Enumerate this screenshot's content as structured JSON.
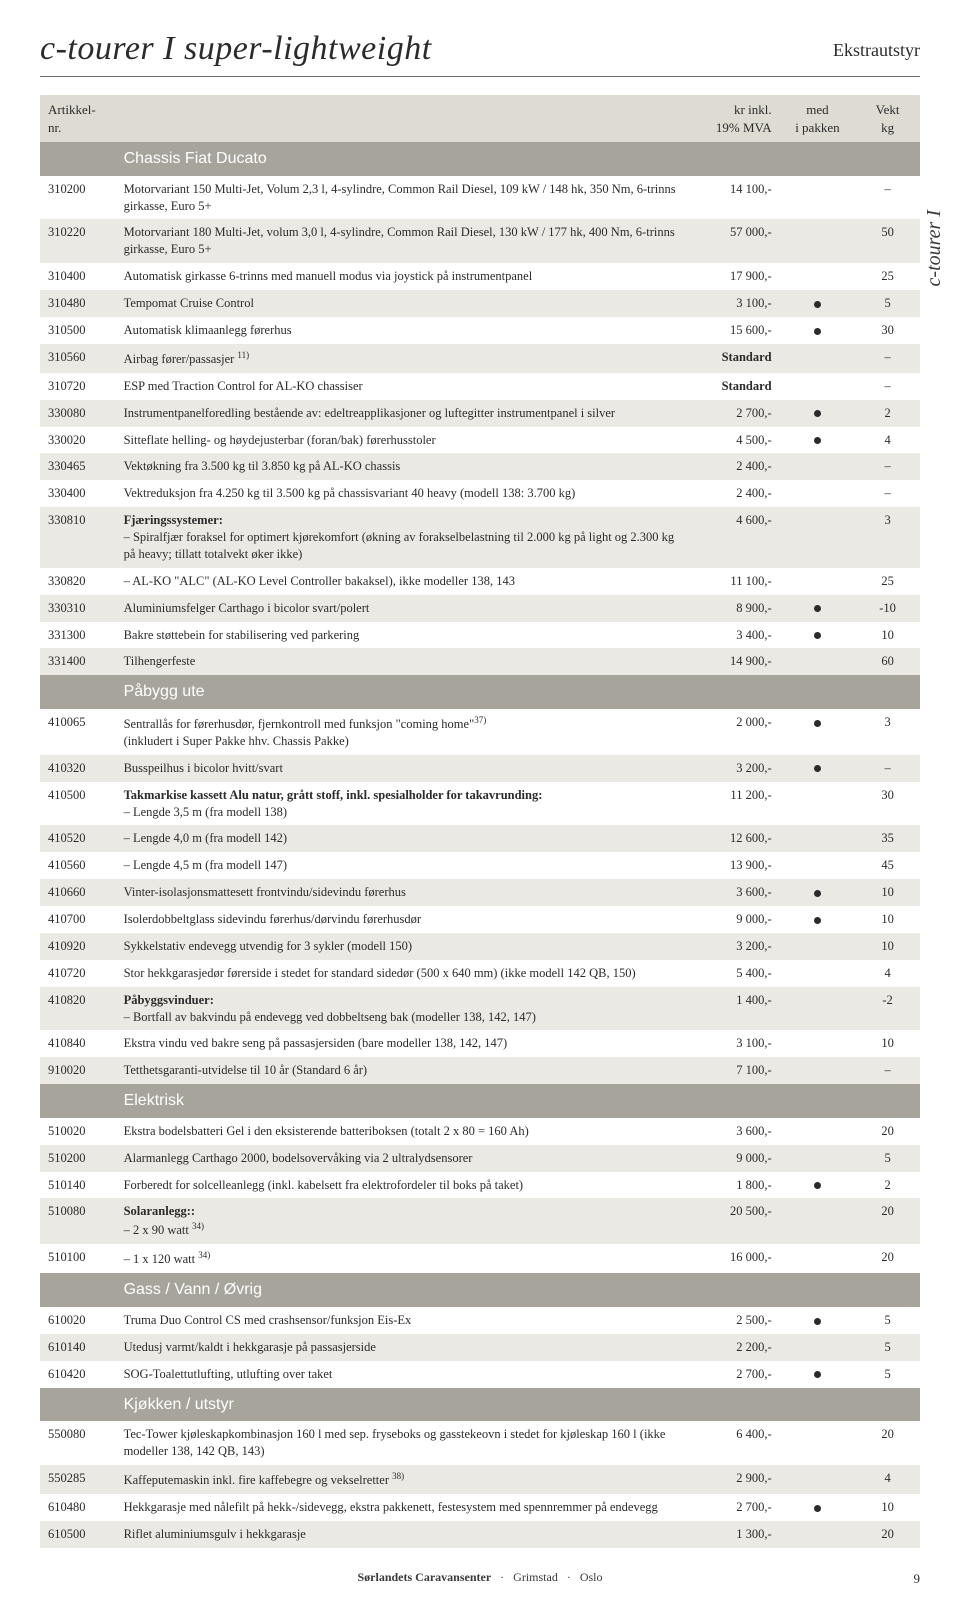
{
  "title": "c-tourer I super-lightweight",
  "subtitle_right": "Ekstrautstyr",
  "side_tab": "c-tourer I",
  "columns": {
    "art": "Artikkel-nr.",
    "price": "kr inkl.\n19% MVA",
    "pkg": "med\ni pakken",
    "wt": "Vekt\nkg"
  },
  "footer": {
    "left": "Sørlandets Caravansenter",
    "mid": "·",
    "c1": "Grimstad",
    "c2": "Oslo"
  },
  "page_num": "9",
  "sections": [
    {
      "title": "Chassis Fiat Ducato",
      "rows": [
        {
          "art": "310200",
          "desc": "Motorvariant 150 Multi-Jet, Volum 2,3 l, 4-sylindre, Common Rail Diesel, 109 kW / 148 hk, 350 Nm, 6-trinns girkasse, Euro 5+",
          "price": "14 100,-",
          "pkg": "",
          "wt": "–"
        },
        {
          "art": "310220",
          "desc": "Motorvariant 180 Multi-Jet, volum 3,0 l, 4-sylindre, Common Rail Diesel, 130 kW / 177 hk, 400 Nm, 6-trinns girkasse, Euro 5+",
          "price": "57 000,-",
          "pkg": "",
          "wt": "50"
        },
        {
          "art": "310400",
          "desc": "Automatisk girkasse 6-trinns med manuell modus via joystick på instrumentpanel",
          "price": "17 900,-",
          "pkg": "",
          "wt": "25"
        },
        {
          "art": "310480",
          "desc": "Tempomat Cruise Control",
          "price": "3 100,-",
          "pkg": "●",
          "wt": "5"
        },
        {
          "art": "310500",
          "desc": "Automatisk klimaanlegg førerhus",
          "price": "15 600,-",
          "pkg": "●",
          "wt": "30"
        },
        {
          "art": "310560",
          "desc": "Airbag fører/passasjer ",
          "sup": "11)",
          "price": "Standard",
          "price_bold": true,
          "pkg": "",
          "wt": "–"
        },
        {
          "art": "310720",
          "desc": "ESP med Traction Control for AL-KO chassiser",
          "price": "Standard",
          "price_bold": true,
          "pkg": "",
          "wt": "–"
        },
        {
          "art": "330080",
          "desc": "Instrumentpanelforedling bestående av: edeltreapplikasjoner og luftegitter instrumentpanel i silver",
          "price": "2 700,-",
          "pkg": "●",
          "wt": "2"
        },
        {
          "art": "330020",
          "desc": "Sitteflate helling- og høydejusterbar (foran/bak) førerhusstoler",
          "price": "4 500,-",
          "pkg": "●",
          "wt": "4"
        },
        {
          "art": "330465",
          "desc": "Vektøkning fra 3.500 kg til 3.850 kg på AL-KO chassis",
          "price": "2 400,-",
          "pkg": "",
          "wt": "–"
        },
        {
          "art": "330400",
          "desc": "Vektreduksjon fra 4.250 kg til 3.500 kg på chassisvariant 40 heavy (modell 138: 3.700 kg)",
          "price": "2 400,-",
          "pkg": "",
          "wt": "–"
        },
        {
          "art": "330810",
          "desc_html": "<b>Fjæringssystemer:</b><br>– Spiralfjær foraksel for optimert kjørekomfort (økning av forakselbelastning til 2.000 kg på light og 2.300 kg på heavy; tillatt totalvekt øker ikke)",
          "price": "4 600,-",
          "pkg": "",
          "wt": "3"
        },
        {
          "art": "330820",
          "desc": "– AL-KO \"ALC\" (AL-KO Level Controller bakaksel), ikke modeller 138, 143",
          "price": "11 100,-",
          "pkg": "",
          "wt": "25"
        },
        {
          "art": "330310",
          "desc": "Aluminiumsfelger Carthago i bicolor svart/polert",
          "price": "8 900,-",
          "pkg": "●",
          "wt": "-10"
        },
        {
          "art": "331300",
          "desc": "Bakre støttebein for stabilisering ved parkering",
          "price": "3 400,-",
          "pkg": "●",
          "wt": "10"
        },
        {
          "art": "331400",
          "desc": "Tilhengerfeste",
          "price": "14 900,-",
          "pkg": "",
          "wt": "60"
        }
      ]
    },
    {
      "title": "Påbygg ute",
      "rows": [
        {
          "art": "410065",
          "desc_html": "Sentrallås for førerhusdør, fjernkontroll med funksjon \"coming home\"<sup>37)</sup><br>(inkludert i Super Pakke hhv. Chassis Pakke)",
          "price": "2 000,-",
          "pkg": "●",
          "wt": "3"
        },
        {
          "art": "410320",
          "desc": "Busspeilhus i bicolor hvitt/svart",
          "price": "3 200,-",
          "pkg": "●",
          "wt": "–"
        },
        {
          "art": "410500",
          "desc_html": "<b>Takmarkise kassett Alu natur, grått stoff, inkl. spesialholder for takavrunding:</b><br>– Lengde 3,5 m (fra modell 138)",
          "price": "11 200,-",
          "pkg": "",
          "wt": "30"
        },
        {
          "art": "410520",
          "desc": "– Lengde 4,0 m (fra modell 142)",
          "price": "12 600,-",
          "pkg": "",
          "wt": "35"
        },
        {
          "art": "410560",
          "desc": "– Lengde 4,5 m (fra modell 147)",
          "price": "13 900,-",
          "pkg": "",
          "wt": "45"
        },
        {
          "art": "410660",
          "desc": "Vinter-isolasjonsmattesett frontvindu/sidevindu førerhus",
          "price": "3 600,-",
          "pkg": "●",
          "wt": "10"
        },
        {
          "art": "410700",
          "desc": "Isolerdobbeltglass sidevindu førerhus/dørvindu førerhusdør",
          "price": "9 000,-",
          "pkg": "●",
          "wt": "10"
        },
        {
          "art": "410920",
          "desc": "Sykkelstativ endevegg utvendig for 3 sykler (modell 150)",
          "price": "3 200,-",
          "pkg": "",
          "wt": "10"
        },
        {
          "art": "410720",
          "desc": "Stor hekkgarasjedør førerside i stedet for standard sidedør (500 x 640 mm) (ikke modell 142 QB, 150)",
          "price": "5 400,-",
          "pkg": "",
          "wt": "4"
        },
        {
          "art": "410820",
          "desc_html": "<b>Påbyggsvinduer:</b><br>– Bortfall av bakvindu på endevegg ved dobbeltseng bak (modeller 138, 142, 147)",
          "price": "1 400,-",
          "pkg": "",
          "wt": "-2"
        },
        {
          "art": "410840",
          "desc": "Ekstra vindu ved bakre seng på passasjersiden (bare modeller 138, 142, 147)",
          "price": "3 100,-",
          "pkg": "",
          "wt": "10"
        },
        {
          "art": "910020",
          "desc": "Tetthetsgaranti-utvidelse til 10 år (Standard 6 år)",
          "price": "7 100,-",
          "pkg": "",
          "wt": "–"
        }
      ]
    },
    {
      "title": "Elektrisk",
      "rows": [
        {
          "art": "510020",
          "desc": "Ekstra bodelsbatteri Gel i den eksisterende batteriboksen (totalt 2 x 80 = 160 Ah)",
          "price": "3 600,-",
          "pkg": "",
          "wt": "20"
        },
        {
          "art": "510200",
          "desc": "Alarmanlegg Carthago 2000, bodelsovervåking via 2 ultralydsensorer",
          "price": "9 000,-",
          "pkg": "",
          "wt": "5"
        },
        {
          "art": "510140",
          "desc": "Forberedt for solcelleanlegg (inkl. kabelsett fra elektrofordeler til boks på taket)",
          "price": "1 800,-",
          "pkg": "●",
          "wt": "2"
        },
        {
          "art": "510080",
          "desc_html": "<b>Solaranlegg::</b><br>– 2 x 90 watt <sup>34)</sup>",
          "price": "20 500,-",
          "pkg": "",
          "wt": "20"
        },
        {
          "art": "510100",
          "desc_html": "– 1 x 120 watt <sup>34)</sup>",
          "price": "16 000,-",
          "pkg": "",
          "wt": "20"
        }
      ]
    },
    {
      "title": "Gass / Vann / Øvrig",
      "rows": [
        {
          "art": "610020",
          "desc": "Truma Duo Control CS med crashsensor/funksjon Eis-Ex",
          "price": "2 500,-",
          "pkg": "●",
          "wt": "5"
        },
        {
          "art": "610140",
          "desc": "Utedusj varmt/kaldt i hekkgarasje på passasjerside",
          "price": "2 200,-",
          "pkg": "",
          "wt": "5"
        },
        {
          "art": "610420",
          "desc": "SOG-Toalettutlufting, utlufting over taket",
          "price": "2 700,-",
          "pkg": "●",
          "wt": "5"
        }
      ]
    },
    {
      "title": "Kjøkken / utstyr",
      "rows": [
        {
          "art": "550080",
          "desc": "Tec-Tower kjøleskapkombinasjon 160 l med sep. fryseboks og gasstekeovn i stedet for kjøleskap 160 l (ikke modeller 138, 142 QB, 143)",
          "price": "6 400,-",
          "pkg": "",
          "wt": "20"
        },
        {
          "art": "550285",
          "desc_html": "Kaffeputemaskin inkl. fire kaffebegre og vekselretter <sup>38)</sup>",
          "price": "2 900,-",
          "pkg": "",
          "wt": "4"
        },
        {
          "art": "610480",
          "desc": "Hekkgarasje med nålefilt på hekk-/sidevegg, ekstra pakkenett, festesystem med spennremmer på endevegg",
          "price": "2 700,-",
          "pkg": "●",
          "wt": "10"
        },
        {
          "art": "610500",
          "desc": "Riflet aluminiumsgulv i hekkgarasje",
          "price": "1 300,-",
          "pkg": "",
          "wt": "20"
        }
      ]
    }
  ]
}
